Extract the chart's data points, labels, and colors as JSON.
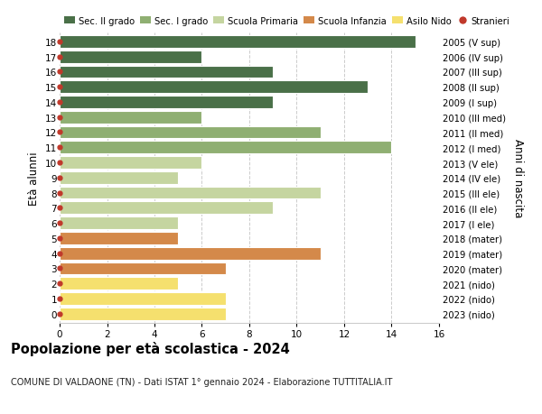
{
  "ages": [
    0,
    1,
    2,
    3,
    4,
    5,
    6,
    7,
    8,
    9,
    10,
    11,
    12,
    13,
    14,
    15,
    16,
    17,
    18
  ],
  "years": [
    "2023 (nido)",
    "2022 (nido)",
    "2021 (nido)",
    "2020 (mater)",
    "2019 (mater)",
    "2018 (mater)",
    "2017 (I ele)",
    "2016 (II ele)",
    "2015 (III ele)",
    "2014 (IV ele)",
    "2013 (V ele)",
    "2012 (I med)",
    "2011 (II med)",
    "2010 (III med)",
    "2009 (I sup)",
    "2008 (II sup)",
    "2007 (III sup)",
    "2006 (IV sup)",
    "2005 (V sup)"
  ],
  "values": [
    7,
    7,
    5,
    7,
    11,
    5,
    5,
    9,
    11,
    5,
    6,
    14,
    11,
    6,
    9,
    13,
    9,
    6,
    15
  ],
  "colors": [
    "#f5e06e",
    "#f5e06e",
    "#f5e06e",
    "#d4894a",
    "#d4894a",
    "#d4894a",
    "#c5d5a0",
    "#c5d5a0",
    "#c5d5a0",
    "#c5d5a0",
    "#c5d5a0",
    "#8faf72",
    "#8faf72",
    "#8faf72",
    "#4a7048",
    "#4a7048",
    "#4a7048",
    "#4a7048",
    "#4a7048"
  ],
  "dot_color": "#c0392b",
  "legend_labels": [
    "Sec. II grado",
    "Sec. I grado",
    "Scuola Primaria",
    "Scuola Infanzia",
    "Asilo Nido",
    "Stranieri"
  ],
  "legend_colors": [
    "#4a7048",
    "#8faf72",
    "#c5d5a0",
    "#d4894a",
    "#f5e06e",
    "#c0392b"
  ],
  "title": "Popolazione per età scolastica - 2024",
  "subtitle": "COMUNE DI VALDAONE (TN) - Dati ISTAT 1° gennaio 2024 - Elaborazione TUTTITALIA.IT",
  "ylabel": "Età alunni",
  "right_label": "Anni di nascita",
  "xlim": [
    0,
    16
  ],
  "xticks": [
    0,
    2,
    4,
    6,
    8,
    10,
    12,
    14,
    16
  ],
  "bg_color": "#ffffff",
  "grid_color": "#cccccc",
  "bar_height": 0.82
}
